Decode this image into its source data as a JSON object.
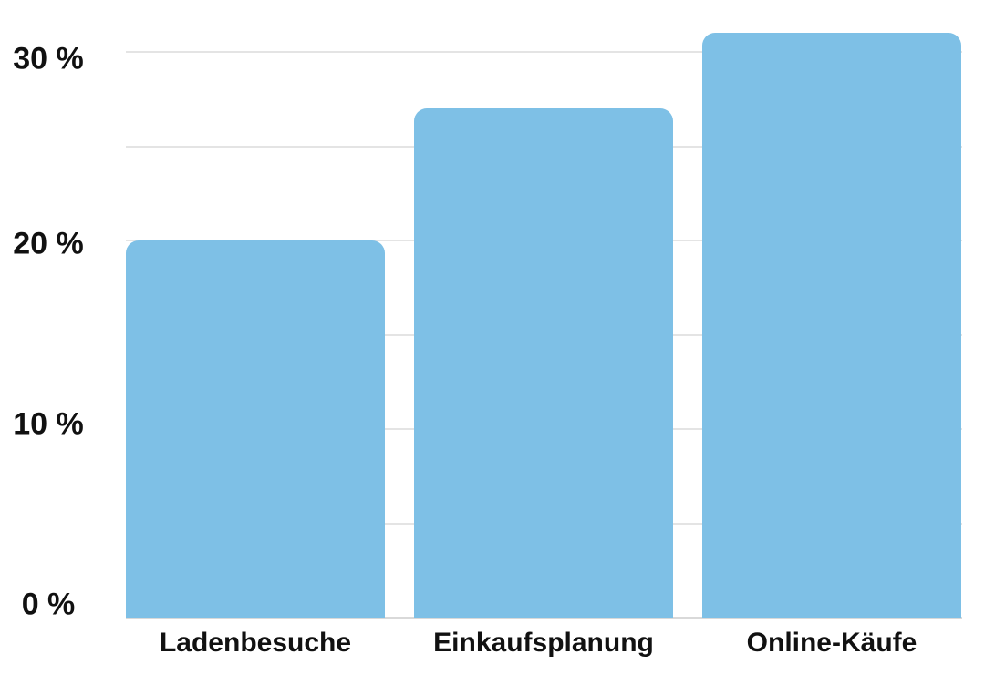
{
  "page": {
    "background_color": "#ffffff"
  },
  "chart_data": {
    "type": "bar",
    "title": "",
    "xlabel": "",
    "ylabel": "",
    "categories": [
      "Ladenbesuche",
      "Einkaufsplanung",
      "Online-Käufe"
    ],
    "values": [
      20,
      27,
      31
    ],
    "unit": "%",
    "ylim": [
      0,
      31.5
    ],
    "yticks": [
      {
        "pct": 0,
        "label": "0 %"
      },
      {
        "pct": 10,
        "label": "10 %"
      },
      {
        "pct": 20,
        "label": "20 %"
      },
      {
        "pct": 30,
        "label": "30 %"
      }
    ],
    "gridlines_pct": [
      5,
      10,
      15,
      20,
      25,
      30
    ],
    "grid": true,
    "legend": false,
    "bar_color": "#7EC0E6",
    "gridline_color": "#e4e4e4",
    "baseline_color": "#d9d9d9",
    "label_color": "#111111"
  }
}
